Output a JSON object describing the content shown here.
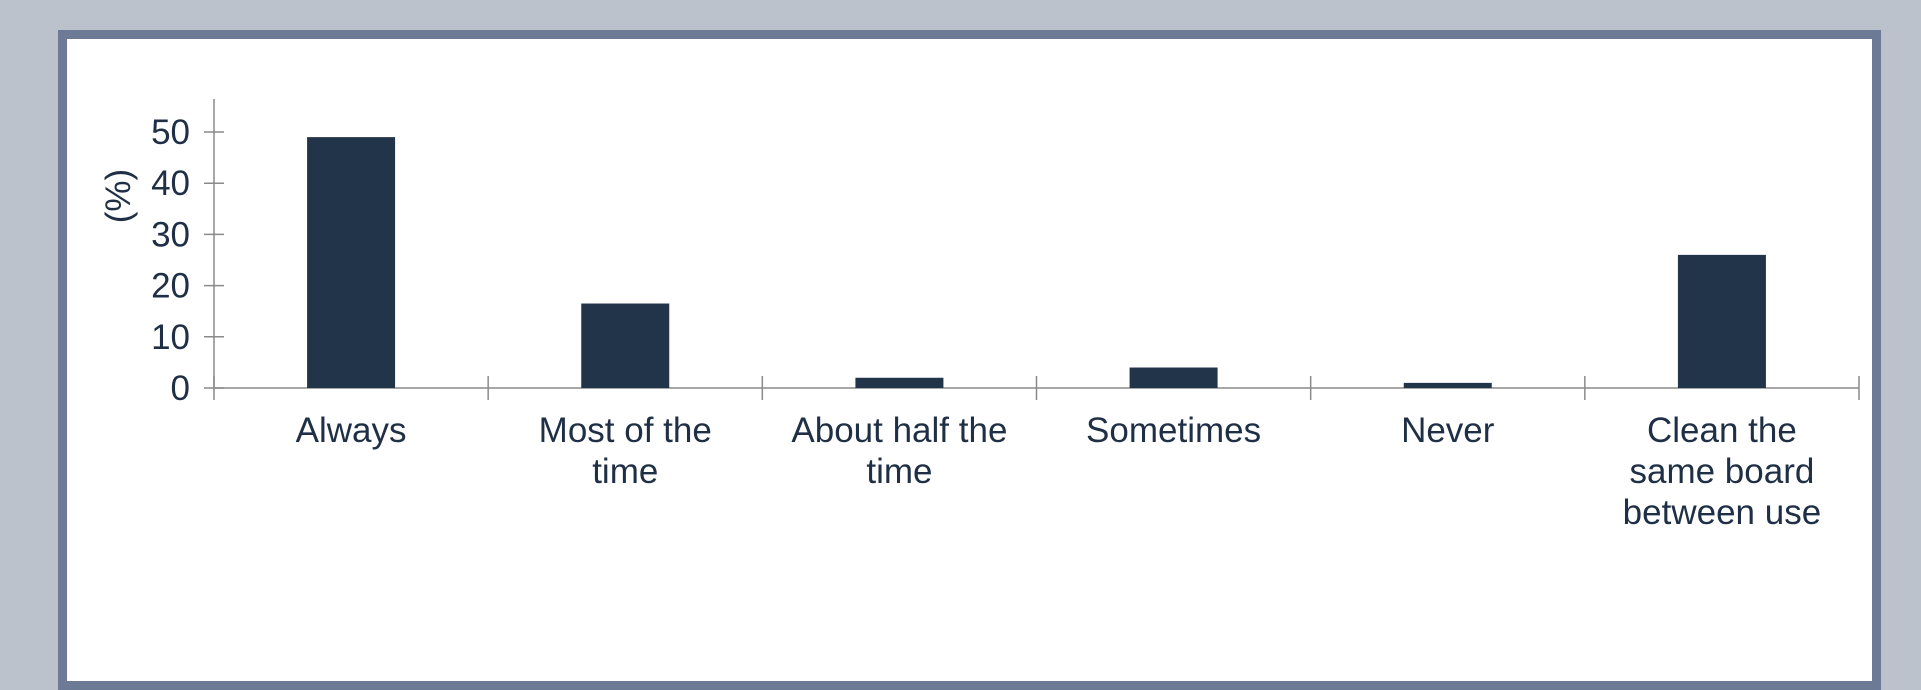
{
  "chart_data": {
    "type": "bar",
    "categories": [
      [
        "Always"
      ],
      [
        "Most of the",
        "time"
      ],
      [
        "About half the",
        "time"
      ],
      [
        "Sometimes"
      ],
      [
        "Never"
      ],
      [
        "Clean the",
        "same board",
        "between use"
      ]
    ],
    "values": [
      49,
      16.5,
      2,
      4,
      1,
      26
    ],
    "ylabel": "(%)",
    "ylim": [
      0,
      50
    ],
    "yticks": [
      0,
      10,
      20,
      30,
      40,
      50
    ],
    "grid": false,
    "colors": {
      "bar": "#213449",
      "axis": "#8a8a8a",
      "text": "#1f2f45"
    }
  }
}
